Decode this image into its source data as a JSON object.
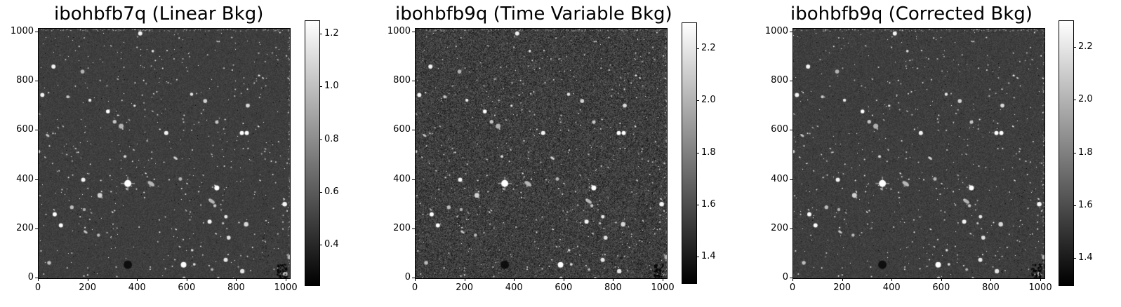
{
  "panels": [
    {
      "id": "p1",
      "title": "ibohbfb7q (Linear Bkg)",
      "x_ticks": [
        "0",
        "200",
        "400",
        "600",
        "800",
        "1000"
      ],
      "y_ticks": [
        "0",
        "200",
        "400",
        "600",
        "800",
        "1000"
      ],
      "colorbar_ticks": [
        "0.4",
        "0.6",
        "0.8",
        "1.0",
        "1.2"
      ],
      "colorbar_range": [
        0.25,
        1.25
      ],
      "noise": 0.35,
      "colormap": "gray"
    },
    {
      "id": "p2",
      "title": "ibohbfb9q (Time Variable Bkg)",
      "x_ticks": [
        "0",
        "200",
        "400",
        "600",
        "800",
        "1000"
      ],
      "y_ticks": [
        "0",
        "200",
        "400",
        "600",
        "800",
        "1000"
      ],
      "colorbar_ticks": [
        "1.4",
        "1.6",
        "1.8",
        "2.0",
        "2.2"
      ],
      "colorbar_range": [
        1.3,
        2.3
      ],
      "noise": 1.0,
      "colormap": "gray"
    },
    {
      "id": "p3",
      "title": "ibohbfb9q (Corrected Bkg)",
      "x_ticks": [
        "0",
        "200",
        "400",
        "600",
        "800",
        "1000"
      ],
      "y_ticks": [
        "0",
        "200",
        "400",
        "600",
        "800",
        "1000"
      ],
      "colorbar_ticks": [
        "1.4",
        "1.6",
        "1.8",
        "2.0",
        "2.2"
      ],
      "colorbar_range": [
        1.3,
        2.3
      ],
      "noise": 0.4,
      "colormap": "gray"
    }
  ]
}
